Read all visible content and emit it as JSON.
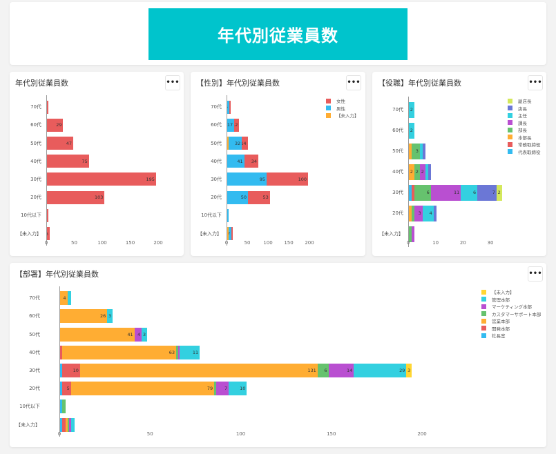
{
  "banner": {
    "title": "年代別従業員数",
    "color": "#00c4cc"
  },
  "menu_label": "•••",
  "chart_data": [
    {
      "id": "age",
      "type": "bar",
      "orientation": "horizontal",
      "stacked": true,
      "title": "年代別従業員数",
      "categories": [
        "70代",
        "60代",
        "50代",
        "40代",
        "30代",
        "20代",
        "10代以下",
        "【未入力】"
      ],
      "xticks": [
        0,
        50,
        100,
        150,
        200
      ],
      "xlim": [
        0,
        200
      ],
      "legend": false,
      "series": [
        {
          "name": "従業員数",
          "color": "#e85c5c",
          "values": [
            3,
            29,
            47,
            75,
            195,
            103,
            1,
            5
          ]
        }
      ],
      "labels": [
        [
          "",
          "29",
          "47",
          "75",
          "195",
          "103",
          "",
          "5"
        ]
      ]
    },
    {
      "id": "gender",
      "type": "bar",
      "orientation": "horizontal",
      "stacked": true,
      "title": "【性別】年代別従業員数",
      "categories": [
        "70代",
        "60代",
        "50代",
        "40代",
        "30代",
        "20代",
        "10代以下",
        "【未入力】"
      ],
      "xticks": [
        0,
        50,
        100,
        150,
        200
      ],
      "xlim": [
        0,
        200
      ],
      "legend": true,
      "legend_order": [
        "女性",
        "男性",
        "【未入力】"
      ],
      "series": [
        {
          "name": "【未入力】",
          "color": "#ffad33",
          "values": [
            0,
            0,
            1,
            0,
            0,
            0,
            0,
            1
          ]
        },
        {
          "name": "男性",
          "color": "#33bbf0",
          "values": [
            5,
            17,
            32,
            41,
            95,
            50,
            2,
            7
          ]
        },
        {
          "name": "女性",
          "color": "#e85c5c",
          "values": [
            1,
            12,
            14,
            34,
            100,
            53,
            0,
            1
          ]
        }
      ],
      "labels": [
        [
          "",
          "",
          "",
          "",
          "",
          "",
          "",
          ""
        ],
        [
          "5",
          "17",
          "32",
          "41",
          "95",
          "50",
          "",
          "7"
        ],
        [
          "",
          "12",
          "14",
          "34",
          "100",
          "53",
          "",
          ""
        ]
      ]
    },
    {
      "id": "role",
      "type": "bar",
      "orientation": "horizontal",
      "stacked": true,
      "title": "【役職】年代別従業員数",
      "categories": [
        "70代",
        "60代",
        "50代",
        "40代",
        "30代",
        "20代",
        "【未入力】"
      ],
      "xticks": [
        0,
        10,
        20,
        30
      ],
      "xlim": [
        0,
        35
      ],
      "legend": true,
      "legend_order": [
        "副店長",
        "店長",
        "主任",
        "課長",
        "部長",
        "本部長",
        "常務取締役",
        "代表取締役"
      ],
      "series": [
        {
          "name": "代表取締役",
          "color": "#33bbf0",
          "values": [
            0,
            0,
            0,
            0,
            1,
            0,
            0
          ]
        },
        {
          "name": "常務取締役",
          "color": "#e85c5c",
          "values": [
            0,
            0,
            0,
            0,
            1,
            0,
            0
          ]
        },
        {
          "name": "本部長",
          "color": "#ffad33",
          "values": [
            0,
            0,
            1,
            2,
            0,
            1,
            0
          ]
        },
        {
          "name": "部長",
          "color": "#66c26e",
          "values": [
            0,
            0,
            3,
            2,
            6,
            1,
            1
          ]
        },
        {
          "name": "課長",
          "color": "#b94fd1",
          "values": [
            0,
            0,
            0,
            2,
            11,
            3,
            1
          ]
        },
        {
          "name": "主任",
          "color": "#33d0e0",
          "values": [
            2,
            2,
            1,
            1,
            6,
            4,
            0
          ]
        },
        {
          "name": "店長",
          "color": "#6b77d6",
          "values": [
            0,
            0,
            1,
            1,
            7,
            1,
            0
          ]
        },
        {
          "name": "副店長",
          "color": "#d4e85c",
          "values": [
            0,
            0,
            0,
            0,
            2,
            0,
            0
          ]
        }
      ],
      "labels": [
        [
          "",
          "",
          "",
          "",
          "",
          "",
          ""
        ],
        [
          "",
          "",
          "",
          "",
          "",
          "",
          ""
        ],
        [
          "",
          "",
          "",
          "2",
          "",
          "",
          ""
        ],
        [
          "",
          "",
          "3",
          "2",
          "6",
          "",
          ""
        ],
        [
          "",
          "",
          "",
          "2",
          "11",
          "3",
          ""
        ],
        [
          "2",
          "2",
          "",
          "",
          "6",
          "4",
          ""
        ],
        [
          "",
          "",
          "",
          "",
          "7",
          "",
          ""
        ],
        [
          "",
          "",
          "",
          "",
          "2",
          "",
          ""
        ]
      ]
    },
    {
      "id": "dept",
      "type": "bar",
      "orientation": "horizontal",
      "stacked": true,
      "title": "【部署】年代別従業員数",
      "categories": [
        "70代",
        "60代",
        "50代",
        "40代",
        "30代",
        "20代",
        "10代以下",
        "【未入力】"
      ],
      "xticks": [
        0,
        50,
        100,
        150,
        200
      ],
      "xlim": [
        0,
        200
      ],
      "legend": true,
      "legend_order": [
        "【未入力】",
        "管理本部",
        "マーケティング本部",
        "カスタマーサポート本部",
        "営業本部",
        "開発本部",
        "社長室"
      ],
      "series": [
        {
          "name": "社長室",
          "color": "#33bbf0",
          "values": [
            0,
            0,
            0,
            0,
            1,
            1,
            1,
            1
          ]
        },
        {
          "name": "開発本部",
          "color": "#e85c5c",
          "values": [
            0,
            0,
            0,
            1,
            10,
            5,
            0,
            2
          ]
        },
        {
          "name": "営業本部",
          "color": "#ffad33",
          "values": [
            4,
            26,
            41,
            63,
            131,
            79,
            0,
            1
          ]
        },
        {
          "name": "カスタマーサポート本部",
          "color": "#66c26e",
          "values": [
            0,
            0,
            0,
            1,
            6,
            1,
            2,
            1
          ]
        },
        {
          "name": "マーケティング本部",
          "color": "#b94fd1",
          "values": [
            0,
            0,
            4,
            1,
            14,
            7,
            0,
            1
          ]
        },
        {
          "name": "管理本部",
          "color": "#33d0e0",
          "values": [
            2,
            3,
            3,
            11,
            29,
            10,
            0,
            2
          ]
        },
        {
          "name": "【未入力】",
          "color": "#ffd633",
          "values": [
            0,
            0,
            0,
            0,
            3,
            0,
            0,
            0
          ]
        }
      ],
      "labels": [
        [
          "",
          "",
          "",
          "",
          "",
          "",
          "",
          ""
        ],
        [
          "",
          "",
          "",
          "",
          "10",
          "5",
          "",
          ""
        ],
        [
          "4",
          "26",
          "41",
          "63",
          "131",
          "79",
          "",
          ""
        ],
        [
          "",
          "",
          "",
          "",
          "6",
          "",
          "",
          ""
        ],
        [
          "",
          "",
          "4",
          "",
          "14",
          "7",
          "",
          ""
        ],
        [
          "",
          "3",
          "3",
          "11",
          "29",
          "10",
          "",
          ""
        ],
        [
          "",
          "",
          "",
          "",
          "3",
          "",
          "",
          ""
        ]
      ]
    }
  ]
}
